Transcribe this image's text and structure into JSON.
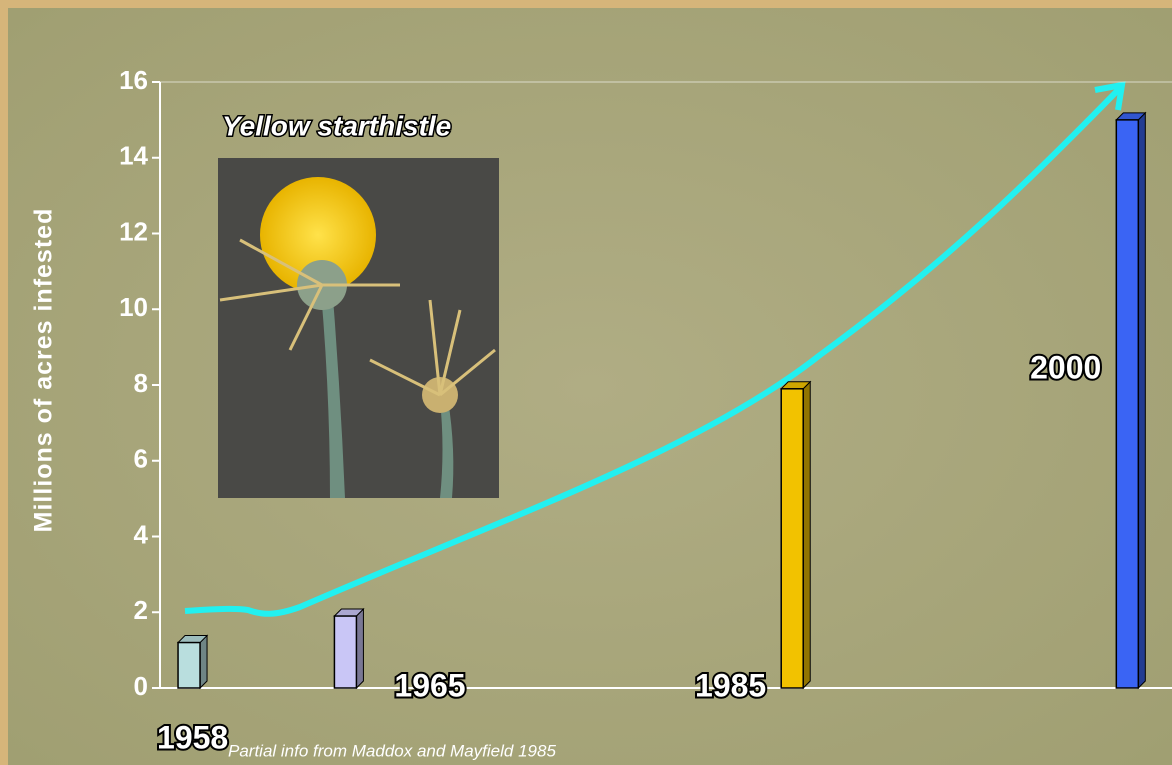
{
  "chart_data": {
    "type": "bar",
    "title": "Yellow starthistle",
    "y_label": "Millions of acres infested",
    "source": "Partial info from Maddox and Mayfield 1985",
    "x": [
      1958,
      1965,
      1985,
      2000
    ],
    "values": [
      1.2,
      1.9,
      7.9,
      15
    ],
    "colors": [
      "#b9dede",
      "#c9c6f6",
      "#f2c200",
      "#3a64f4"
    ],
    "xlim": [
      1956.7,
      2002
    ],
    "ylim": [
      0,
      16
    ],
    "yticks": [
      0,
      2,
      4,
      6,
      8,
      10,
      12,
      14,
      16
    ]
  }
}
